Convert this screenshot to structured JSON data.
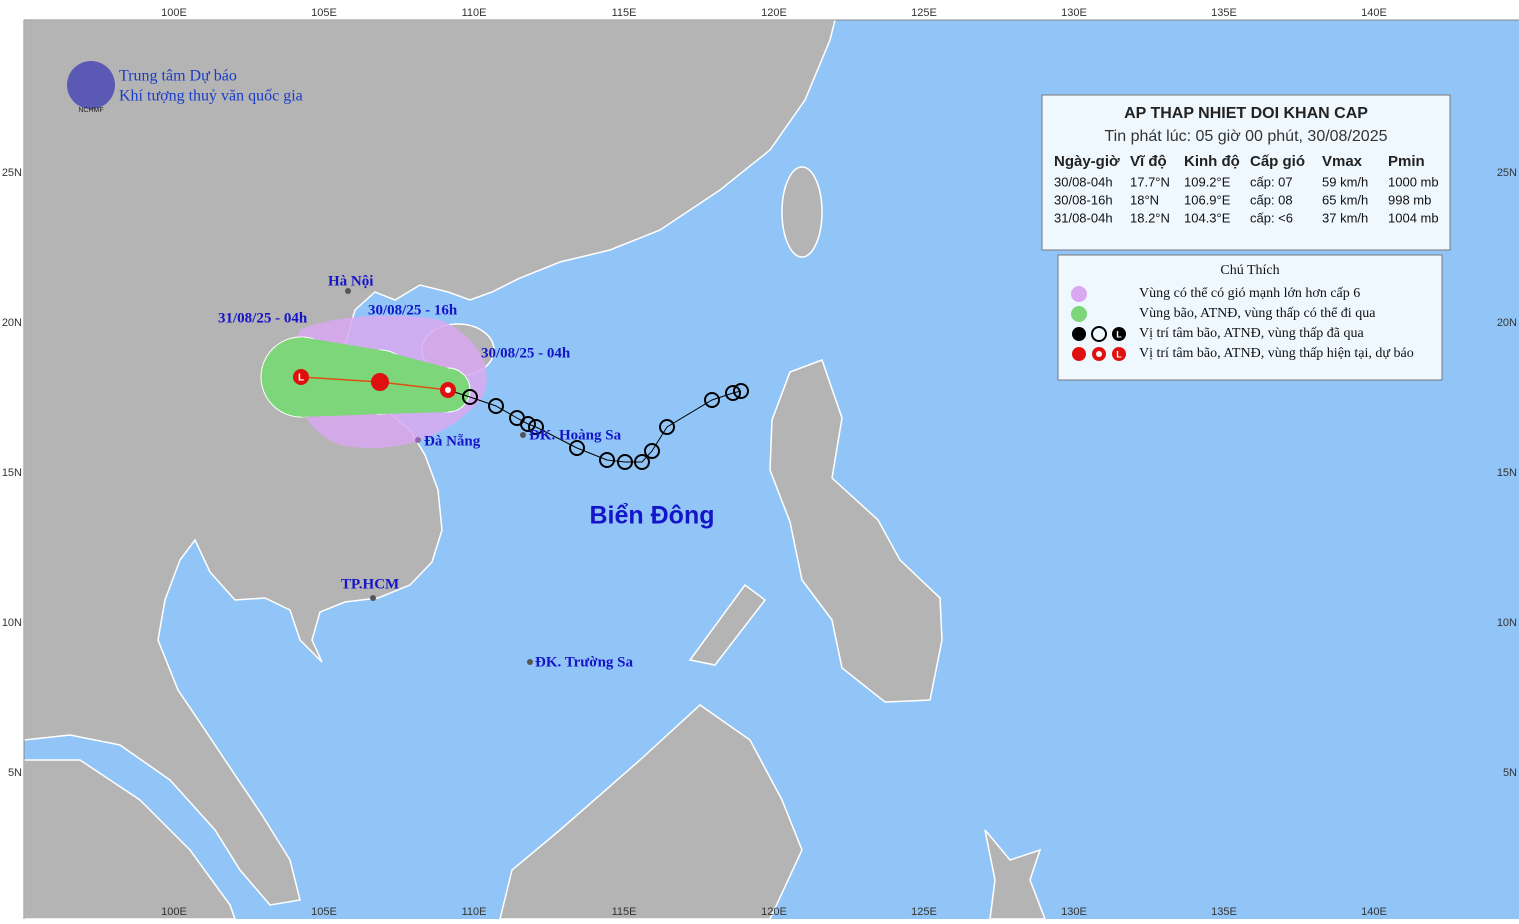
{
  "header": {
    "org_line1": "Trung tâm Dự báo",
    "org_line2": "Khí tượng thuỷ văn quốc gia",
    "logo_text": "NCHMF"
  },
  "bulletin": {
    "title": "AP THAP NHIET DOI KHAN CAP",
    "issued": "Tin phát lúc: 05 giờ 00 phút, 30/08/2025",
    "columns": [
      "Ngày-giờ",
      "Vĩ độ",
      "Kinh độ",
      "Cấp gió",
      "Vmax",
      "Pmin"
    ],
    "rows": [
      [
        "30/08-04h",
        "17.7°N",
        "109.2°E",
        "cấp: 07",
        "59 km/h",
        "1000 mb"
      ],
      [
        "30/08-16h",
        "18°N",
        "106.9°E",
        "cấp: 08",
        "65 km/h",
        "998 mb"
      ],
      [
        "31/08-04h",
        "18.2°N",
        "104.3°E",
        "cấp: <6",
        "37 km/h",
        "1004 mb"
      ]
    ]
  },
  "legend": {
    "title": "Chú Thích",
    "center_letter": "L",
    "items": [
      "Vùng có thể có gió mạnh lớn hơn cấp 6",
      "Vùng bão, ATNĐ, vùng thấp có thể đi qua",
      "Vị trí tâm bão, ATNĐ, vùng thấp đã qua",
      "Vị trí tâm bão, ATNĐ, vùng thấp hiện tại, dự báo"
    ]
  },
  "map_labels": {
    "ha_noi": "Hà Nội",
    "da_nang": "Đà Nẵng",
    "hoang_sa": "ĐK. Hoàng Sa",
    "truong_sa": "ĐK. Trường Sa",
    "hcm": "TP.HCM",
    "sea": "Biển Đông",
    "time_1": "30/08/25 - 04h",
    "time_2": "30/08/25 - 16h",
    "time_3": "31/08/25 - 04h"
  },
  "axes": {
    "longitudes": [
      "100E",
      "105E",
      "110E",
      "115E",
      "120E",
      "125E",
      "130E",
      "135E",
      "140E"
    ],
    "latitudes": [
      "25N",
      "20N",
      "15N",
      "10N",
      "5N"
    ]
  }
}
